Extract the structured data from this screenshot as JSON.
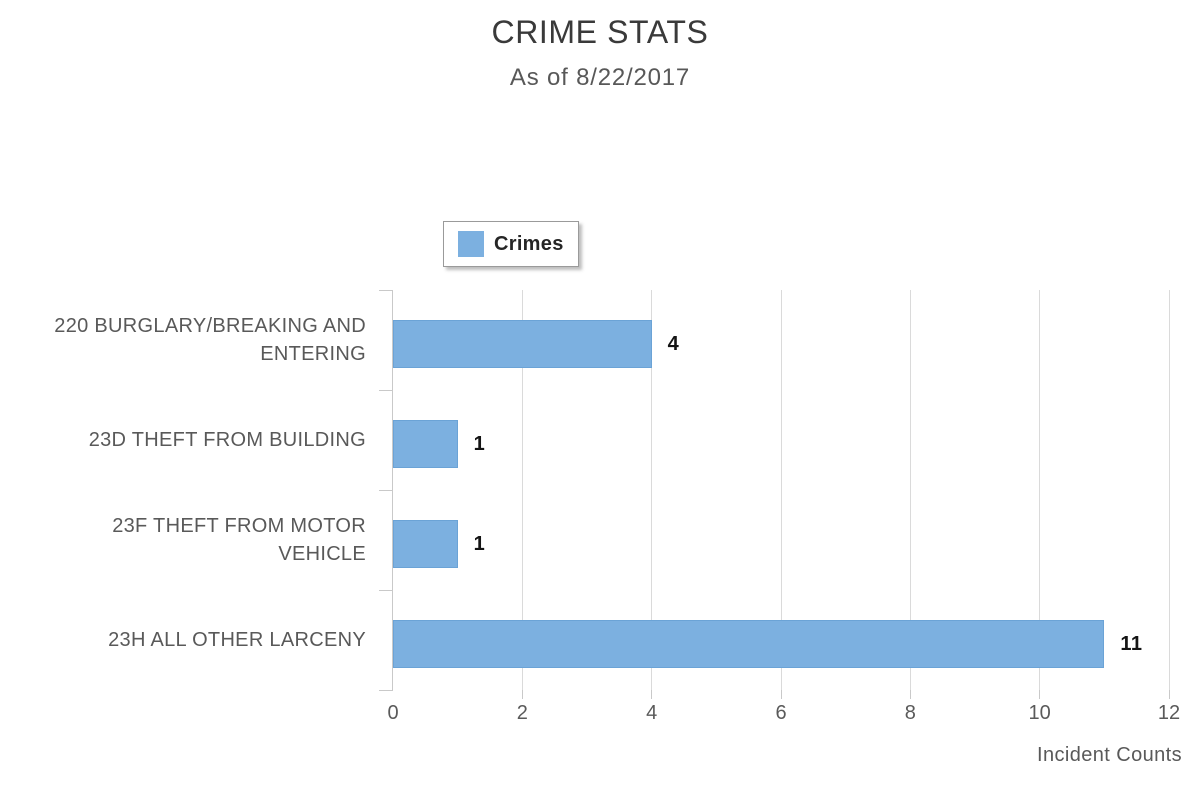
{
  "chart_data": {
    "type": "bar",
    "orientation": "horizontal",
    "title": "CRIME STATS",
    "subtitle": "As of 8/22/2017",
    "xlabel": "Incident Counts",
    "categories": [
      "220 BURGLARY/BREAKING AND ENTERING",
      "23D THEFT FROM BUILDING",
      "23F THEFT FROM MOTOR VEHICLE",
      "23H ALL OTHER LARCENY"
    ],
    "series": [
      {
        "name": "Crimes",
        "values": [
          4,
          1,
          1,
          11
        ],
        "color": "#7CB0E0"
      }
    ],
    "xlim": [
      0,
      12
    ],
    "xticks": [
      0,
      2,
      4,
      6,
      8,
      10,
      12
    ],
    "grid": "vertical-only",
    "legend_position": "top-center",
    "data_labels_shown": true,
    "colors": {
      "bar_fill": "#7CB0E0",
      "bar_border": "#6BA3D6",
      "gridline": "#DADADA",
      "axis": "#C9C9C9",
      "title_text": "#3A3A3A",
      "label_text": "#595959",
      "value_label_text": "#141414"
    }
  }
}
